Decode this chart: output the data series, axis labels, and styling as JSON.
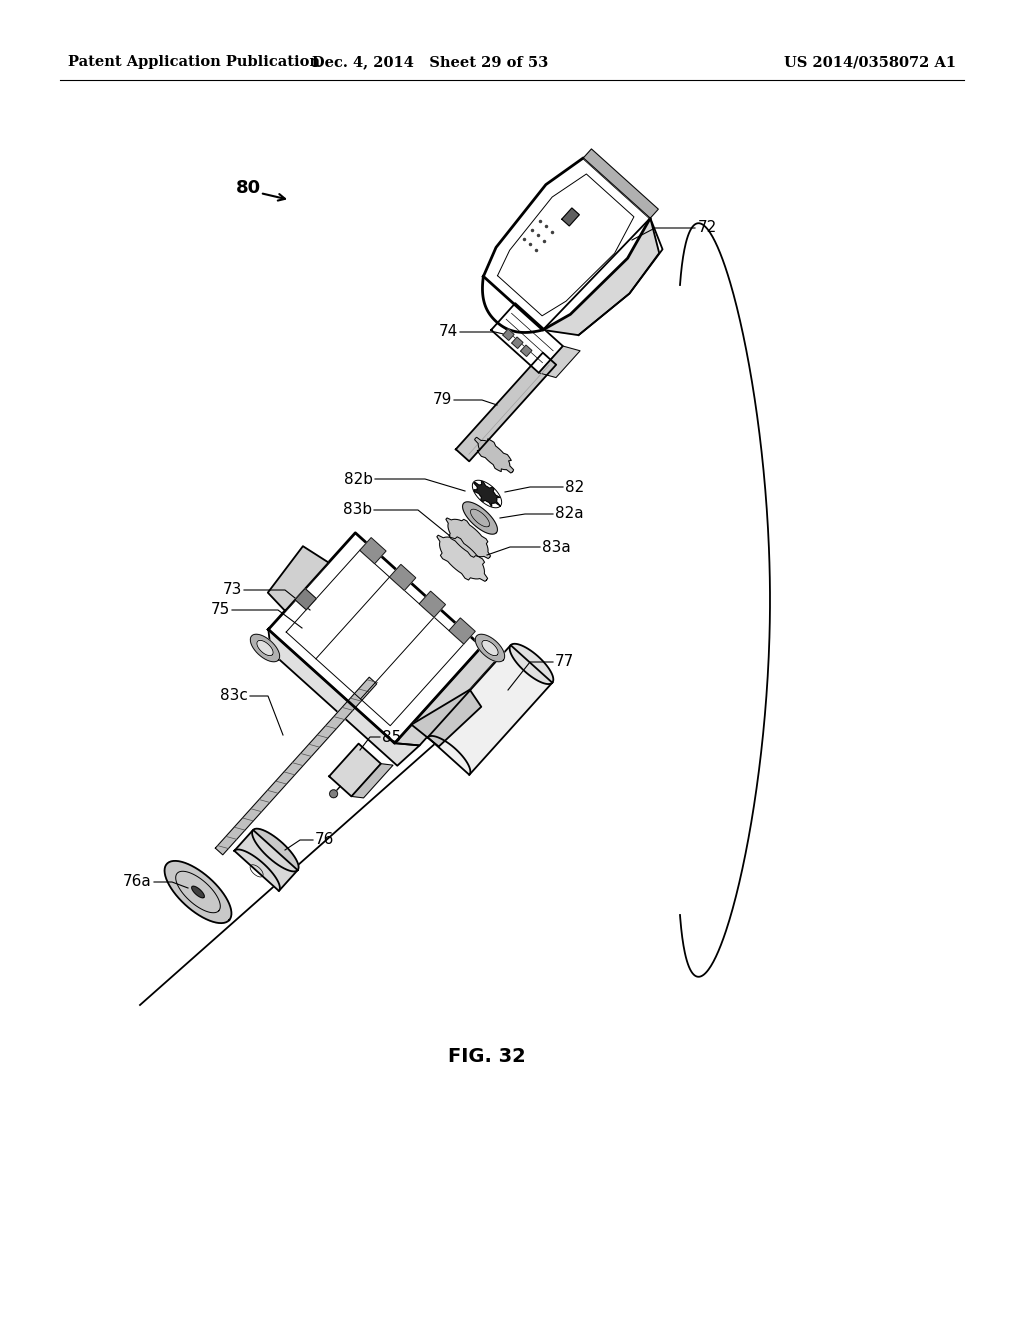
{
  "header_left": "Patent Application Publication",
  "header_mid": "Dec. 4, 2014   Sheet 29 of 53",
  "header_right": "US 2014/0358072 A1",
  "fig_label": "FIG. 32",
  "assembly_label": "80",
  "background_color": "#ffffff",
  "line_color": "#000000",
  "header_fontsize": 10.5,
  "label_fontsize": 11,
  "fig_fontsize": 14
}
